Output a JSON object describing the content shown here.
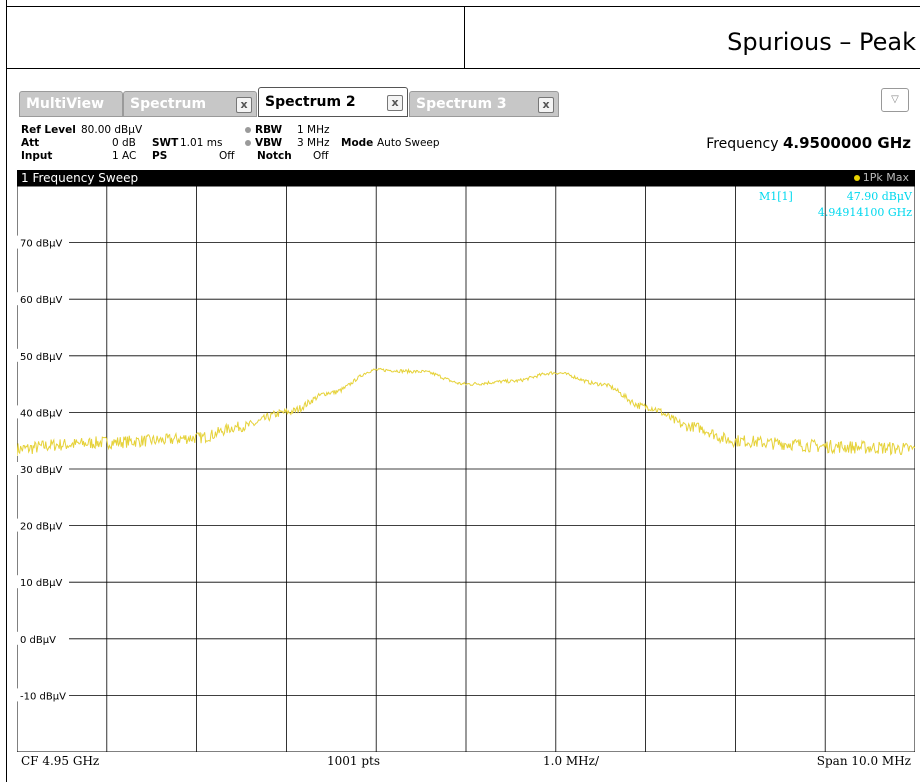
{
  "report": {
    "title": "Spurious – Peak"
  },
  "tabs": {
    "multiview": "MultiView",
    "spectrum": "Spectrum",
    "spectrum2": "Spectrum 2",
    "spectrum3": "Spectrum 3",
    "close_glyph": "x",
    "dropdown_glyph": "▽"
  },
  "settings": {
    "ref_level_label": "Ref Level",
    "ref_level_value": "80.00 dBμV",
    "att_label": "Att",
    "att_value": "0 dB",
    "input_label": "Input",
    "input_value": "1 AC",
    "swt_label": "SWT",
    "swt_value": "1.01 ms",
    "ps_label": "PS",
    "ps_value": "Off",
    "rbw_label": "RBW",
    "rbw_value": "1 MHz",
    "vbw_label": "VBW",
    "vbw_value": "3 MHz",
    "notch_label": "Notch",
    "notch_value": "Off",
    "mode_label": "Mode",
    "mode_value": "Auto Sweep",
    "frequency_label": "Frequency",
    "frequency_value": "4.9500000 GHz"
  },
  "trace": {
    "title": "1 Frequency Sweep",
    "detector": "1Pk Max"
  },
  "marker": {
    "label": "M1[1]",
    "level": "47.90 dBμV",
    "frequency": "4.94914100 GHz",
    "tag": "M1",
    "x_mhz": 4.949141,
    "y_dbuv": 47.9
  },
  "footer": {
    "cf": "CF 4.95 GHz",
    "points": "1001 pts",
    "div": "1.0 MHz/",
    "span": "Span 10.0 MHz"
  },
  "colors": {
    "trace": "#e6d23a",
    "marker": "#00d8ee",
    "grid": "#000000",
    "tab_inactive": "#c7c7c7"
  },
  "chart_data": {
    "type": "line",
    "title": "1 Frequency Sweep",
    "xlabel": "",
    "ylabel": "",
    "xlim": [
      4945.0,
      4955.0
    ],
    "ylim": [
      -20.0,
      80.0
    ],
    "y_ticks": [
      "70 dBμV",
      "60 dBμV",
      "50 dBμV",
      "40 dBμV",
      "30 dBμV",
      "20 dBμV",
      "10 dBμV",
      "0 dBμV",
      "-10 dBμV"
    ],
    "y_tick_values": [
      70,
      60,
      50,
      40,
      30,
      20,
      10,
      0,
      -10
    ],
    "grid": true,
    "series": [
      {
        "x": [
          4945.0,
          4945.5,
          4946.0,
          4946.5,
          4947.0,
          4947.5,
          4948.0,
          4948.5,
          4949.0,
          4949.5,
          4950.0,
          4950.5,
          4951.0,
          4951.5,
          4952.0,
          4952.5,
          4953.0,
          4953.5,
          4954.0,
          4954.5,
          4955.0
        ],
        "y": [
          33.5,
          34.3,
          34.7,
          35.0,
          35.5,
          37.5,
          40.0,
          43.5,
          47.5,
          47.2,
          45.0,
          45.5,
          47.0,
          45.0,
          41.0,
          37.5,
          35.0,
          34.5,
          34.0,
          33.8,
          33.5
        ]
      }
    ]
  }
}
